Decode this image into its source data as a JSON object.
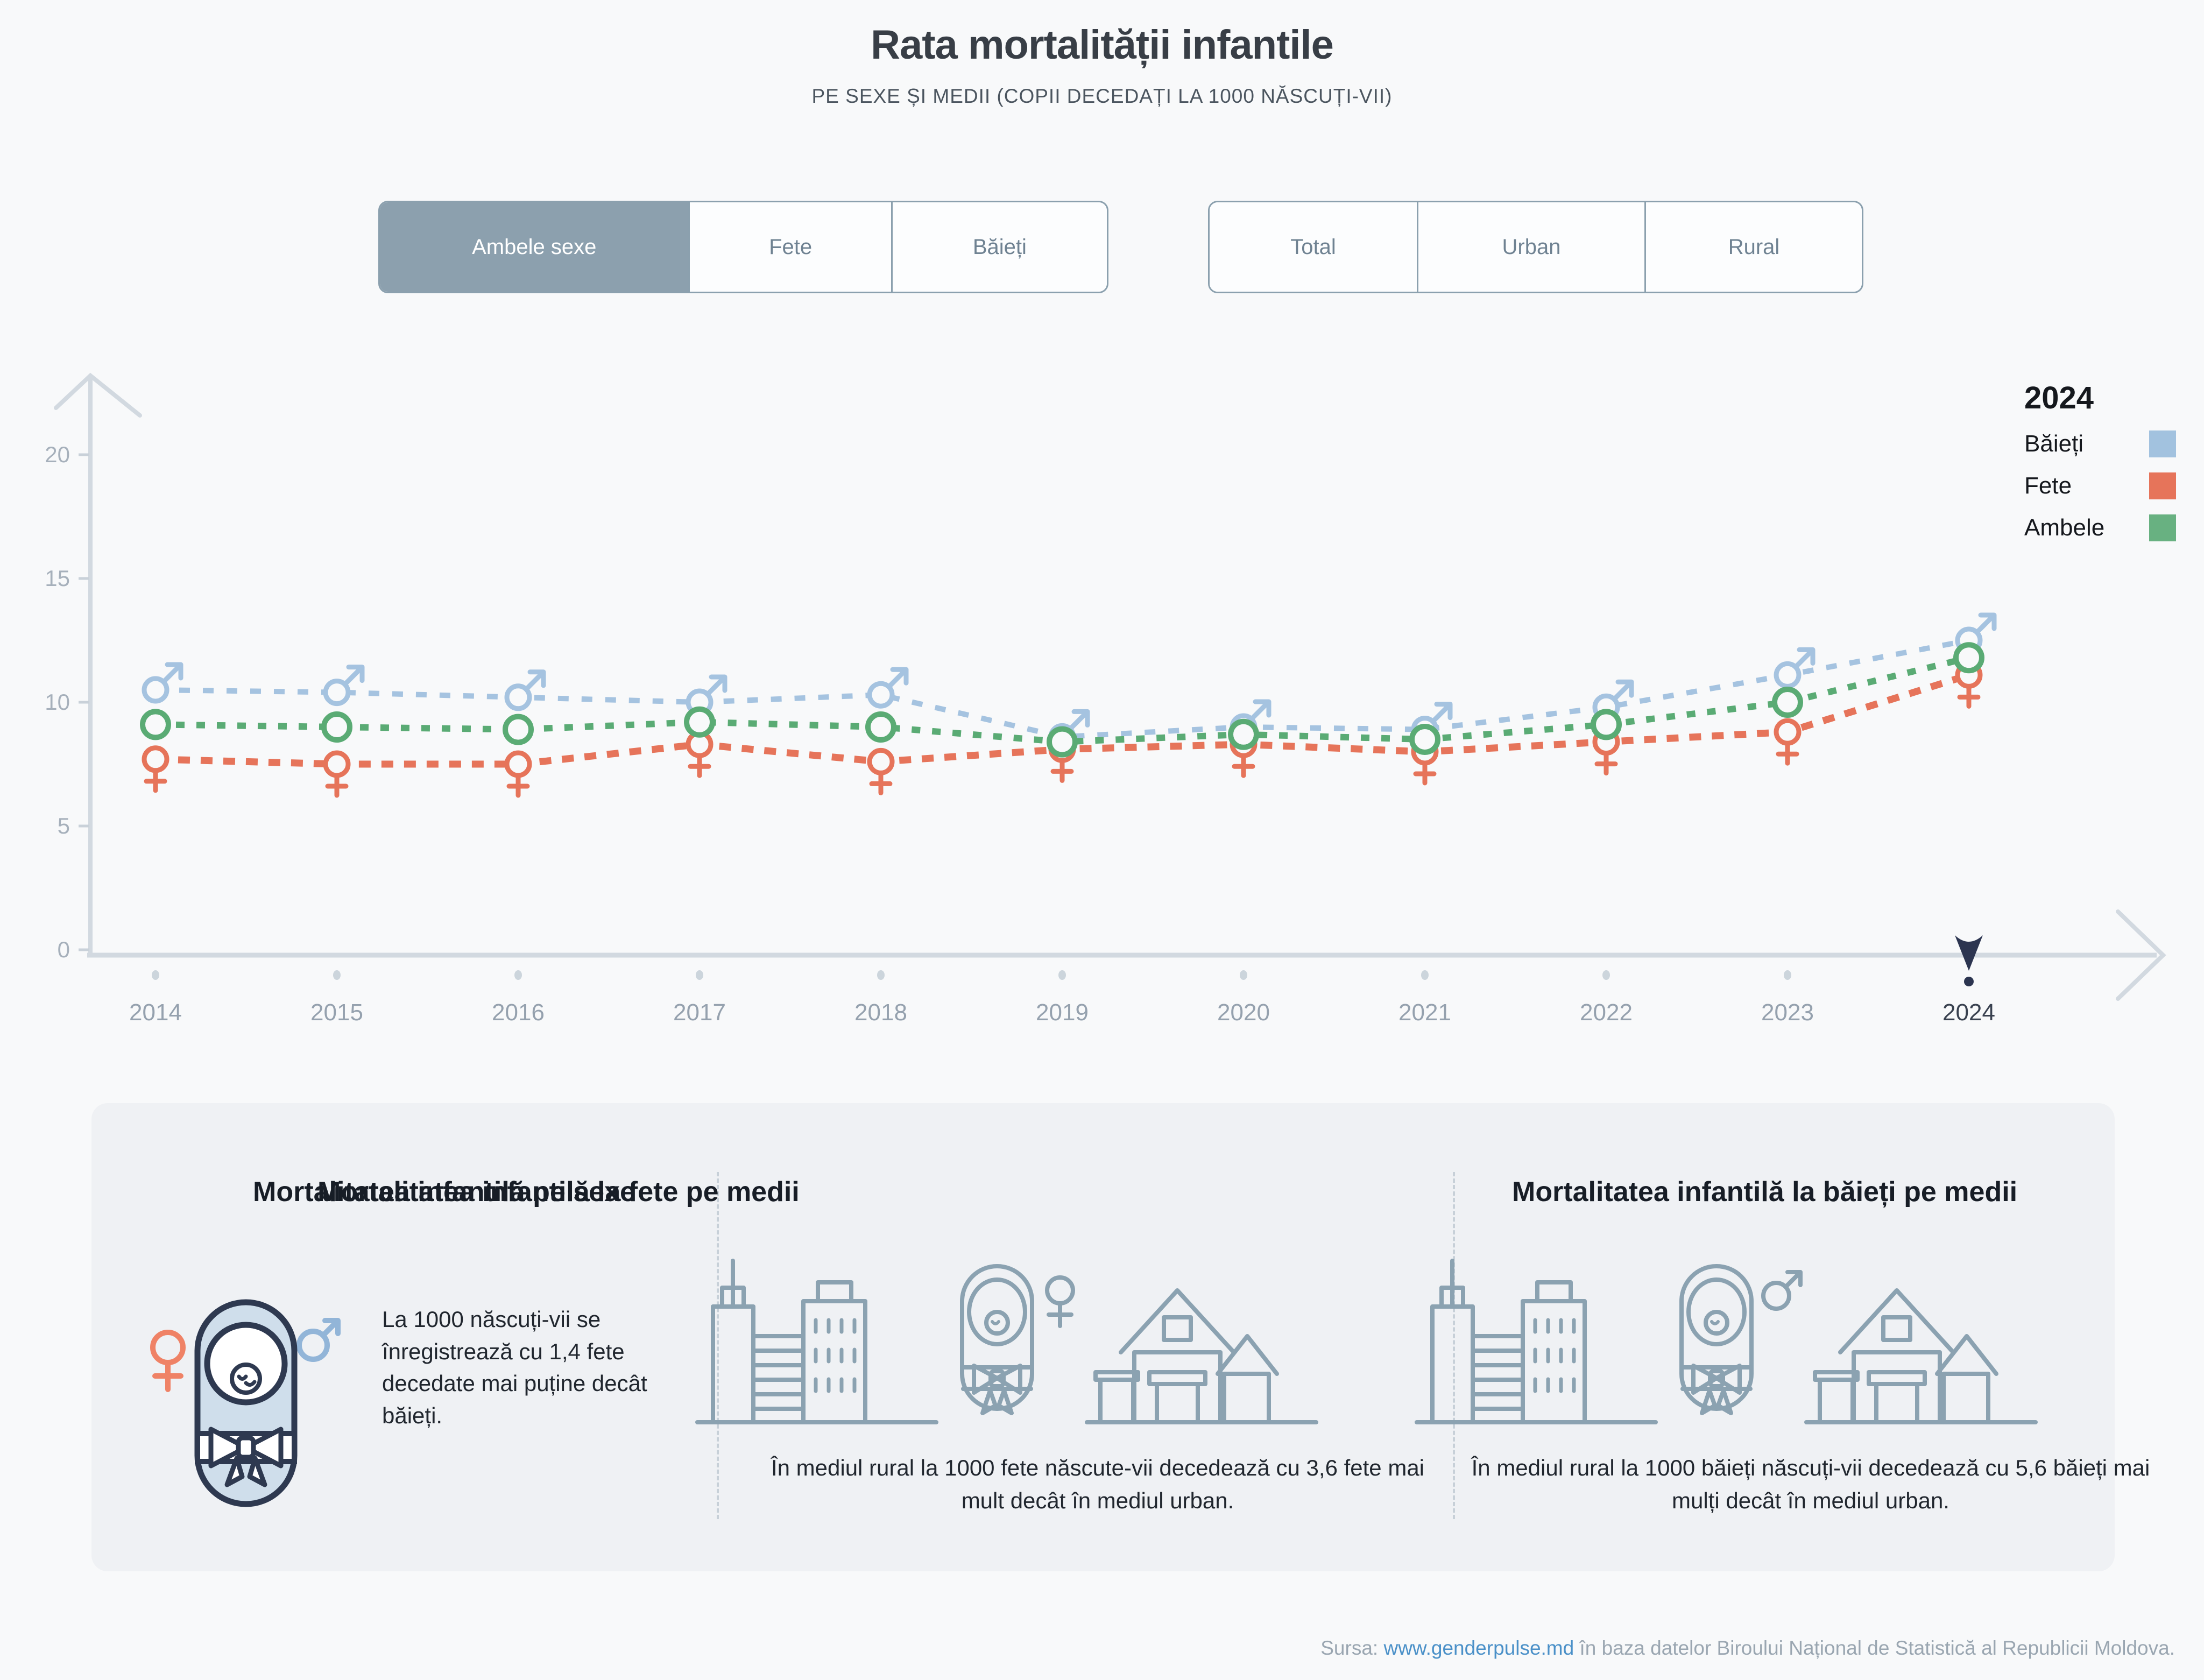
{
  "header": {
    "title": "Rata mortalității infantile",
    "subtitle": "PE SEXE ȘI MEDII (COPII DECEDAȚI LA 1000 NĂSCUȚI-VII)"
  },
  "controls": {
    "sex_tabs": {
      "items": [
        {
          "label": "Ambele sexe",
          "selected": true
        },
        {
          "label": "Fete",
          "selected": false
        },
        {
          "label": "Băieți",
          "selected": false
        }
      ]
    },
    "area_tabs": {
      "items": [
        {
          "label": "Total",
          "selected": false
        },
        {
          "label": "Urban",
          "selected": false
        },
        {
          "label": "Rural",
          "selected": false
        }
      ]
    }
  },
  "chart_data": {
    "type": "line",
    "title": "Rata mortalității infantile",
    "x": [
      2014,
      2015,
      2016,
      2017,
      2018,
      2019,
      2020,
      2021,
      2022,
      2023,
      2024
    ],
    "series": [
      {
        "name": "Băieți",
        "marker": "male",
        "color": "#a5c3e0",
        "dash": "20 24",
        "width": 10,
        "values": [
          10.5,
          10.4,
          10.2,
          10.0,
          10.3,
          8.6,
          9.0,
          8.9,
          9.8,
          11.1,
          12.5
        ]
      },
      {
        "name": "Ambele",
        "marker": "circle",
        "color": "#5aab74",
        "dash": "16 22",
        "width": 12,
        "values": [
          9.1,
          9.0,
          8.9,
          9.2,
          9.0,
          8.4,
          8.7,
          8.5,
          9.1,
          10.0,
          11.8
        ]
      },
      {
        "name": "Fete",
        "marker": "female",
        "color": "#e6745a",
        "dash": "22 20",
        "width": 13,
        "values": [
          7.7,
          7.5,
          7.5,
          8.3,
          7.6,
          8.1,
          8.3,
          8.0,
          8.4,
          8.8,
          11.1
        ]
      }
    ],
    "ylim": [
      0,
      22
    ],
    "yticks": [
      0,
      5,
      10,
      15,
      20
    ],
    "grid": false,
    "legend_position": "top-right",
    "highlight_year": 2024
  },
  "legend": {
    "title": "2024",
    "items": [
      {
        "label": "Băieți",
        "color": "#a2c2df"
      },
      {
        "label": "Fete",
        "color": "#e6745a"
      },
      {
        "label": "Ambele",
        "color": "#68b181"
      }
    ]
  },
  "cards": [
    {
      "title": "Mortalitatea infantilă pe sexe",
      "text": "La 1000 născuți-vii se înregistrează cu 1,4 fete decedate mai puține decât băieți."
    },
    {
      "title": "Mortalitatea infantilă la fete pe medii",
      "text": "În mediul rural la 1000 fete născute-vii decedează cu 3,6 fete mai mult decât în mediul urban."
    },
    {
      "title": "Mortalitatea infantilă la băieți pe medii",
      "text": "În mediul rural la 1000 băieți născuți-vii decedează cu 5,6 băieți mai mulți decât în mediul urban."
    }
  ],
  "footer": {
    "prefix": "Sursa: ",
    "link": "www.genderpulse.md",
    "suffix": " în baza datelor Biroului Național de Statistică al Republicii Moldova."
  }
}
